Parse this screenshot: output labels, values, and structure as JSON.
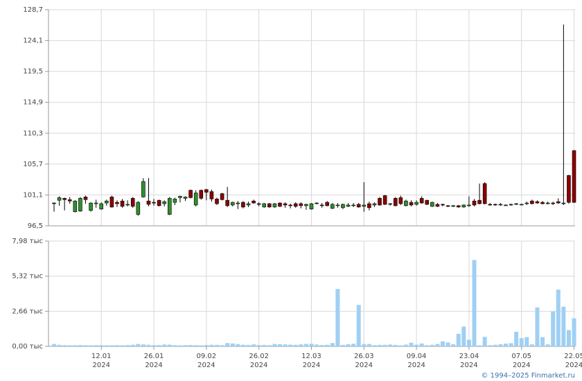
{
  "chart_data": [
    {
      "type": "candlestick",
      "open": [
        99.9,
        100.3,
        100.6,
        100.4,
        98.6,
        98.7,
        100.8,
        98.8,
        99.9,
        99.0,
        99.9,
        100.8,
        100.0,
        100.2,
        99.6,
        100.6,
        98.2,
        100.8,
        100.2,
        100.0,
        100.3,
        99.8,
        98.2,
        100.0,
        100.7,
        100.6,
        101.8,
        99.6,
        101.8,
        101.9,
        101.6,
        100.5,
        101.3,
        100.3,
        99.6,
        99.9,
        100.0,
        99.6,
        100.2,
        99.8,
        99.3,
        99.8,
        99.3,
        99.9,
        99.8,
        99.6,
        99.8,
        99.8,
        99.5,
        99.0,
        99.9,
        99.6,
        100.0,
        99.1,
        99.5,
        99.2,
        99.4,
        99.5,
        99.7,
        99.4,
        99.8,
        99.6,
        100.6,
        101.0,
        99.7,
        100.6,
        100.7,
        99.5,
        100.0,
        99.7,
        100.6,
        100.3,
        99.4,
        99.7,
        99.7,
        99.5,
        99.4,
        99.5,
        99.3,
        99.5,
        100.2,
        100.3,
        102.8,
        99.7,
        99.7,
        99.6,
        99.6,
        99.6,
        99.7,
        99.7,
        99.8,
        100.2,
        100.1,
        100.0,
        99.9,
        99.9,
        100.1,
        99.8,
        104.0,
        107.7
      ],
      "high": [
        100.0,
        100.9,
        100.7,
        100.8,
        100.3,
        100.8,
        101.0,
        100.0,
        100.4,
        100.0,
        100.4,
        101.0,
        100.3,
        100.5,
        100.3,
        100.8,
        100.2,
        103.6,
        103.6,
        100.5,
        100.4,
        100.3,
        100.8,
        100.7,
        101.0,
        100.9,
        101.9,
        101.8,
        101.9,
        102.0,
        101.9,
        100.7,
        101.4,
        102.3,
        100.1,
        100.2,
        100.2,
        100.1,
        100.4,
        100.0,
        99.9,
        99.9,
        99.9,
        100.0,
        100.0,
        99.8,
        100.0,
        100.0,
        99.8,
        99.9,
        100.0,
        99.9,
        100.2,
        99.9,
        99.9,
        99.8,
        99.9,
        99.9,
        99.9,
        103.0,
        100.1,
        100.0,
        100.8,
        101.1,
        99.9,
        100.8,
        101.0,
        100.4,
        100.3,
        100.3,
        100.9,
        100.4,
        100.1,
        99.9,
        99.8,
        99.6,
        99.6,
        99.6,
        99.7,
        100.9,
        100.5,
        102.8,
        103.0,
        99.9,
        99.8,
        99.9,
        99.7,
        99.8,
        99.9,
        99.8,
        100.1,
        100.4,
        100.3,
        100.2,
        100.1,
        100.1,
        100.6,
        126.5,
        104.1,
        107.8
      ],
      "low": [
        98.6,
        99.5,
        98.8,
        99.8,
        98.5,
        98.6,
        99.8,
        98.6,
        99.2,
        98.9,
        99.5,
        99.2,
        99.3,
        99.2,
        99.4,
        99.2,
        98.0,
        100.7,
        99.4,
        99.5,
        99.4,
        99.4,
        98.1,
        99.6,
        100.0,
        100.2,
        100.6,
        99.4,
        100.4,
        100.3,
        100.1,
        99.6,
        100.3,
        99.3,
        99.4,
        99.0,
        99.1,
        99.3,
        99.8,
        99.4,
        99.2,
        99.2,
        99.2,
        99.3,
        99.2,
        99.1,
        99.2,
        99.1,
        98.9,
        98.9,
        99.7,
        99.2,
        99.4,
        99.0,
        99.2,
        99.0,
        99.3,
        99.3,
        99.2,
        98.6,
        98.8,
        99.3,
        99.5,
        99.6,
        99.5,
        99.4,
        99.6,
        99.4,
        99.4,
        99.5,
        99.8,
        99.6,
        99.3,
        99.3,
        99.4,
        99.3,
        99.3,
        99.2,
        99.2,
        99.3,
        99.4,
        99.7,
        99.7,
        99.5,
        99.5,
        99.5,
        99.5,
        99.5,
        99.6,
        99.6,
        99.6,
        99.7,
        99.8,
        99.7,
        99.7,
        99.6,
        99.8,
        99.6,
        99.8,
        99.9
      ],
      "close": [
        99.9,
        100.7,
        100.4,
        100.2,
        100.2,
        100.6,
        100.4,
        99.9,
        99.9,
        99.8,
        100.2,
        99.3,
        99.8,
        99.4,
        99.7,
        99.4,
        100.0,
        103.1,
        99.7,
        99.9,
        99.5,
        100.1,
        100.6,
        100.5,
        100.9,
        100.8,
        100.7,
        101.4,
        100.6,
        101.5,
        100.5,
        99.8,
        100.4,
        99.5,
        100.0,
        99.9,
        99.3,
        99.8,
        99.9,
        99.7,
        99.8,
        99.3,
        99.8,
        99.4,
        99.6,
        99.5,
        99.4,
        99.5,
        99.7,
        99.8,
        99.9,
        99.5,
        99.5,
        99.7,
        99.6,
        99.7,
        99.6,
        99.6,
        99.3,
        99.6,
        99.2,
        99.8,
        99.6,
        99.7,
        99.8,
        99.5,
        99.8,
        100.2,
        99.6,
        100.0,
        99.9,
        99.7,
        100.0,
        99.4,
        99.6,
        99.4,
        99.5,
        99.3,
        99.6,
        99.6,
        99.6,
        99.8,
        99.8,
        99.6,
        99.6,
        99.7,
        99.6,
        99.7,
        99.8,
        99.7,
        99.9,
        99.8,
        99.9,
        99.8,
        99.9,
        99.8,
        99.9,
        99.9,
        100.0,
        100.0
      ],
      "up_color": "#2f8f2f",
      "down_color": "#8b0000",
      "ylim": [
        96.5,
        128.7
      ],
      "yticks": [
        {
          "value": 96.5,
          "label": "96,5"
        },
        {
          "value": 101.1,
          "label": "101,1"
        },
        {
          "value": 105.7,
          "label": "105,7"
        },
        {
          "value": 110.3,
          "label": "110,3"
        },
        {
          "value": 114.9,
          "label": "114,9"
        },
        {
          "value": 119.5,
          "label": "119,5"
        },
        {
          "value": 124.1,
          "label": "124,1"
        },
        {
          "value": 128.7,
          "label": "128,7"
        }
      ],
      "grid": true
    },
    {
      "type": "bar",
      "values": [
        180,
        120,
        90,
        80,
        90,
        100,
        90,
        80,
        90,
        90,
        80,
        80,
        90,
        80,
        100,
        120,
        180,
        150,
        120,
        90,
        100,
        140,
        130,
        90,
        80,
        90,
        100,
        90,
        80,
        100,
        120,
        110,
        90,
        250,
        220,
        170,
        120,
        110,
        150,
        100,
        110,
        90,
        180,
        160,
        150,
        130,
        120,
        150,
        180,
        200,
        140,
        100,
        120,
        250,
        4350,
        110,
        160,
        200,
        3140,
        170,
        180,
        90,
        110,
        120,
        140,
        110,
        80,
        130,
        270,
        130,
        220,
        90,
        120,
        180,
        380,
        300,
        160,
        950,
        1500,
        500,
        6540,
        80,
        720,
        90,
        120,
        160,
        210,
        240,
        1110,
        620,
        700,
        150,
        2950,
        700,
        150,
        2640,
        4300,
        3000,
        1230,
        2120
      ],
      "categories": [
        null,
        null,
        null,
        null,
        null,
        null,
        null,
        null,
        null,
        {
          "day": "12.01",
          "year": "2024"
        },
        null,
        null,
        null,
        null,
        null,
        null,
        null,
        null,
        null,
        {
          "day": "26.01",
          "year": "2024"
        },
        null,
        null,
        null,
        null,
        null,
        null,
        null,
        null,
        null,
        {
          "day": "09.02",
          "year": "2024"
        },
        null,
        null,
        null,
        null,
        null,
        null,
        null,
        null,
        null,
        {
          "day": "26.02",
          "year": "2024"
        },
        null,
        null,
        null,
        null,
        null,
        null,
        null,
        null,
        null,
        {
          "day": "12.03",
          "year": "2024"
        },
        null,
        null,
        null,
        null,
        null,
        null,
        null,
        null,
        null,
        {
          "day": "26.03",
          "year": "2024"
        },
        null,
        null,
        null,
        null,
        null,
        null,
        null,
        null,
        null,
        {
          "day": "09.04",
          "year": "2024"
        },
        null,
        null,
        null,
        null,
        null,
        null,
        null,
        null,
        null,
        {
          "day": "23.04",
          "year": "2024"
        },
        null,
        null,
        null,
        null,
        null,
        null,
        null,
        null,
        null,
        {
          "day": "07.05",
          "year": "2024"
        },
        null,
        null,
        null,
        null,
        null,
        null,
        null,
        null,
        null,
        {
          "day": "22.05",
          "year": "2024"
        }
      ],
      "color": "#9fd0f4",
      "ylim": [
        0,
        7980
      ],
      "yticks": [
        {
          "value": 0,
          "label": "0,00 тыс"
        },
        {
          "value": 2660,
          "label": "2,66 тыс"
        },
        {
          "value": 5320,
          "label": "5,32 тыс"
        },
        {
          "value": 7980,
          "label": "7,98 тыс"
        }
      ],
      "grid": true
    }
  ],
  "copyright": "© 1994–2025 Finmarket.ru"
}
